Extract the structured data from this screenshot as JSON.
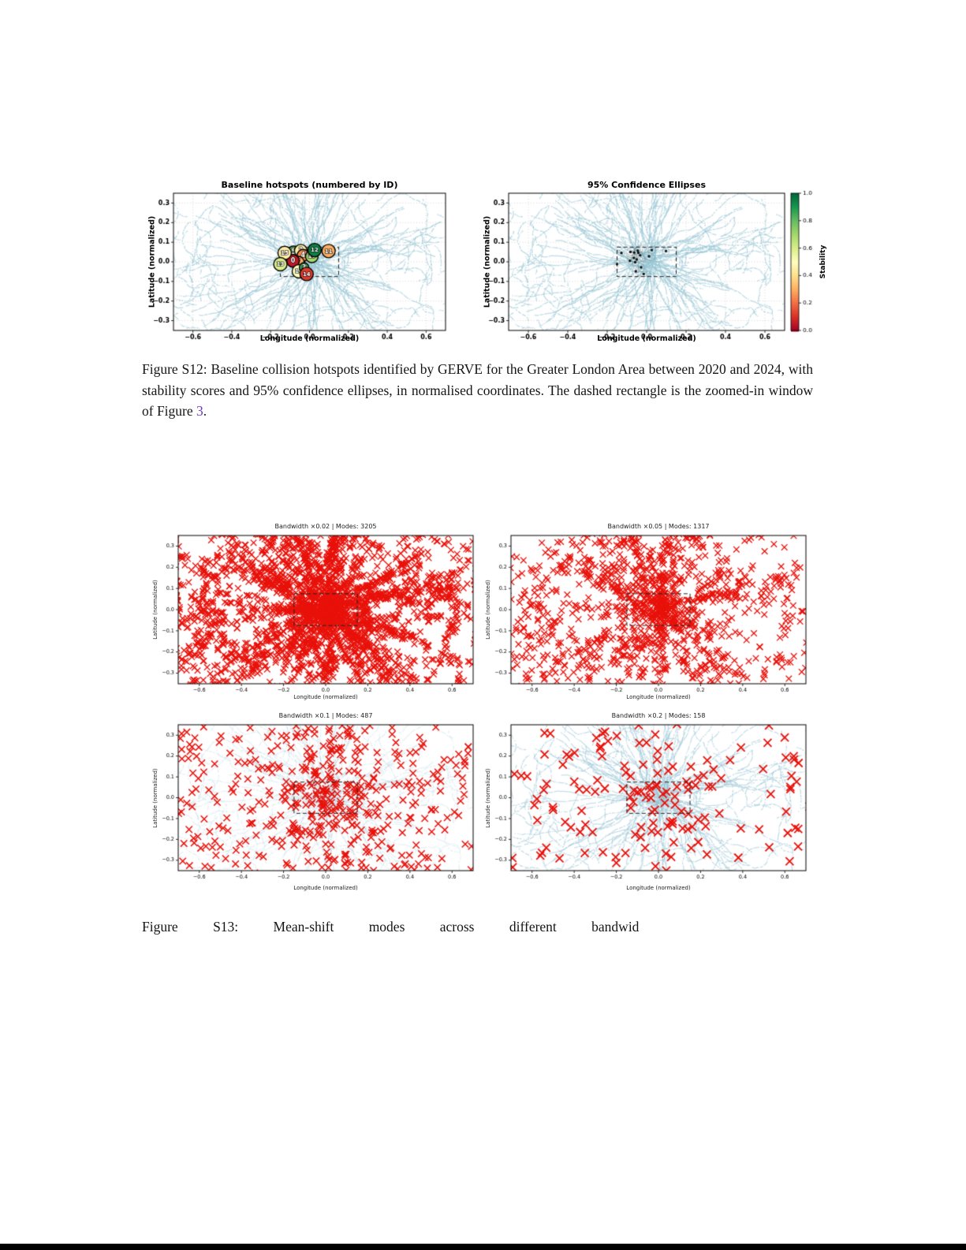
{
  "page": {
    "background": "#ffffff"
  },
  "colors": {
    "road_points": "#97c6d6",
    "marker_red": "#e8120b",
    "zoom_rect": "#222222"
  },
  "figure_s12": {
    "caption": {
      "text_before_link": "Figure S12: Baseline collision hotspots identified by GERVE for the Greater London Area between 2020 and 2024, with stability scores and 95% confidence ellipses, in normalised coordinates. The dashed rectangle is the zoomed-in window of Figure ",
      "link_text": "3",
      "text_after_link": ".",
      "link_color": "#6e3bbf"
    },
    "colorbar": {
      "label": "Stability",
      "ticks": [
        0.0,
        0.2,
        0.4,
        0.6,
        0.8,
        1.0
      ],
      "cmap": "RdYlGn"
    }
  },
  "figure_s13": {
    "caption": {
      "text": "Figure S13: Mean-shift modes across different bandwid"
    }
  },
  "chart_data": [
    {
      "type": "scatter",
      "title": "Baseline hotspots (numbered by ID)",
      "xlabel": "Longitude (normalized)",
      "ylabel": "Latitude (normalized)",
      "xlim": [
        -0.7,
        0.7
      ],
      "ylim": [
        -0.35,
        0.35
      ],
      "xticks": [
        -0.6,
        -0.4,
        -0.2,
        0.0,
        0.2,
        0.4,
        0.6
      ],
      "yticks": [
        -0.3,
        -0.2,
        -0.1,
        0.0,
        0.1,
        0.2,
        0.3
      ],
      "grid": true,
      "background": "collision-point-density",
      "zoom_window": {
        "x0": -0.15,
        "x1": 0.15,
        "y0": -0.075,
        "y1": 0.075
      },
      "show": "hotspots",
      "hotspots": [
        {
          "id": 1,
          "lon": -0.065,
          "lat": 0.02,
          "stability": 0.4,
          "r": 7
        },
        {
          "id": 6,
          "lon": -0.05,
          "lat": 0.012,
          "stability": 0.5,
          "r": 7
        },
        {
          "id": 8,
          "lon": -0.042,
          "lat": 0.046,
          "stability": 0.55,
          "r": 7
        },
        {
          "id": 9,
          "lon": -0.063,
          "lat": 0.047,
          "stability": 0.75,
          "r": 7.5
        },
        {
          "id": 5,
          "lon": -0.082,
          "lat": 0.05,
          "stability": 0.8,
          "r": 7.5
        },
        {
          "id": 2,
          "lon": -0.045,
          "lat": 0.057,
          "stability": 0.45,
          "r": 8
        },
        {
          "id": 4,
          "lon": -0.033,
          "lat": 0.033,
          "stability": 0.25,
          "r": 7.5
        },
        {
          "id": 7,
          "lon": -0.058,
          "lat": -0.002,
          "stability": 0.3,
          "r": 7.5
        },
        {
          "id": 0,
          "lon": -0.085,
          "lat": 0.005,
          "stability": 0.05,
          "r": 8
        },
        {
          "id": 15,
          "lon": -0.128,
          "lat": 0.045,
          "stability": 0.45,
          "r": 8.5
        },
        {
          "id": 13,
          "lon": -0.15,
          "lat": -0.012,
          "stability": 0.6,
          "r": 8.5
        },
        {
          "id": 16,
          "lon": -0.055,
          "lat": -0.048,
          "stability": 0.5,
          "r": 8.5
        },
        {
          "id": 3,
          "lon": -0.028,
          "lat": -0.028,
          "stability": 0.85,
          "r": 6
        },
        {
          "id": 14,
          "lon": -0.015,
          "lat": -0.062,
          "stability": 0.12,
          "r": 8.5
        },
        {
          "id": 10,
          "lon": 0.012,
          "lat": 0.028,
          "stability": 0.7,
          "r": 8
        },
        {
          "id": 12,
          "lon": 0.026,
          "lat": 0.06,
          "stability": 0.95,
          "r": 8.5
        },
        {
          "id": 11,
          "lon": 0.098,
          "lat": 0.055,
          "stability": 0.3,
          "r": 8.5
        }
      ]
    },
    {
      "type": "scatter",
      "title": "95% Confidence Ellipses",
      "xlabel": "Longitude (normalized)",
      "ylabel": "Latitude (normalized)",
      "xlim": [
        -0.7,
        0.7
      ],
      "ylim": [
        -0.35,
        0.35
      ],
      "xticks": [
        -0.6,
        -0.4,
        -0.2,
        0.0,
        0.2,
        0.4,
        0.6
      ],
      "yticks": [
        -0.3,
        -0.2,
        -0.1,
        0.0,
        0.1,
        0.2,
        0.3
      ],
      "grid": true,
      "background": "collision-point-density",
      "zoom_window": {
        "x0": -0.15,
        "x1": 0.15,
        "y0": -0.075,
        "y1": 0.075
      },
      "show": "confidence"
    },
    {
      "type": "scatter",
      "title": "Bandwidth ×0.02 | Modes: 3205",
      "bandwidth": "×0.02",
      "n_modes": 3205,
      "marker": "x",
      "xlabel": "Longitude (normalized)",
      "ylabel": "Latitude (normalized)",
      "xlim": [
        -0.7,
        0.7
      ],
      "ylim": [
        -0.35,
        0.35
      ],
      "xticks": [
        -0.6,
        -0.4,
        -0.2,
        0.0,
        0.2,
        0.4,
        0.6
      ],
      "yticks": [
        -0.3,
        -0.2,
        -0.1,
        0.0,
        0.1,
        0.2,
        0.3
      ],
      "grid": false,
      "zoom_window": {
        "x0": -0.15,
        "x1": 0.15,
        "y0": -0.075,
        "y1": 0.075
      },
      "show": "x_field"
    },
    {
      "type": "scatter",
      "title": "Bandwidth ×0.05 | Modes: 1317",
      "bandwidth": "×0.05",
      "n_modes": 1317,
      "marker": "x",
      "xlabel": "Longitude (normalized)",
      "ylabel": "Latitude (normalized)",
      "xlim": [
        -0.7,
        0.7
      ],
      "ylim": [
        -0.35,
        0.35
      ],
      "xticks": [
        -0.6,
        -0.4,
        -0.2,
        0.0,
        0.2,
        0.4,
        0.6
      ],
      "yticks": [
        -0.3,
        -0.2,
        -0.1,
        0.0,
        0.1,
        0.2,
        0.3
      ],
      "grid": false,
      "zoom_window": {
        "x0": -0.15,
        "x1": 0.15,
        "y0": -0.075,
        "y1": 0.075
      },
      "show": "x_field"
    },
    {
      "type": "scatter",
      "title": "Bandwidth ×0.1 | Modes: 487",
      "bandwidth": "×0.1",
      "n_modes": 487,
      "marker": "x",
      "xlabel": "Longitude (normalized)",
      "ylabel": "Latitude (normalized)",
      "xlim": [
        -0.7,
        0.7
      ],
      "ylim": [
        -0.35,
        0.35
      ],
      "xticks": [
        -0.6,
        -0.4,
        -0.2,
        0.0,
        0.2,
        0.4,
        0.6
      ],
      "yticks": [
        -0.3,
        -0.2,
        -0.1,
        0.0,
        0.1,
        0.2,
        0.3
      ],
      "grid": false,
      "background": "collision-point-density-faint",
      "zoom_window": {
        "x0": -0.15,
        "x1": 0.15,
        "y0": -0.075,
        "y1": 0.075
      },
      "show": "x_field"
    },
    {
      "type": "scatter",
      "title": "Bandwidth ×0.2 | Modes: 158",
      "bandwidth": "×0.2",
      "n_modes": 158,
      "marker": "x",
      "xlabel": "Longitude (normalized)",
      "ylabel": "Latitude (normalized)",
      "xlim": [
        -0.7,
        0.7
      ],
      "ylim": [
        -0.35,
        0.35
      ],
      "xticks": [
        -0.6,
        -0.4,
        -0.2,
        0.0,
        0.2,
        0.4,
        0.6
      ],
      "yticks": [
        -0.3,
        -0.2,
        -0.1,
        0.0,
        0.1,
        0.2,
        0.3
      ],
      "grid": false,
      "background": "collision-point-density",
      "zoom_window": {
        "x0": -0.15,
        "x1": 0.15,
        "y0": -0.075,
        "y1": 0.075
      },
      "show": "x_field"
    }
  ]
}
